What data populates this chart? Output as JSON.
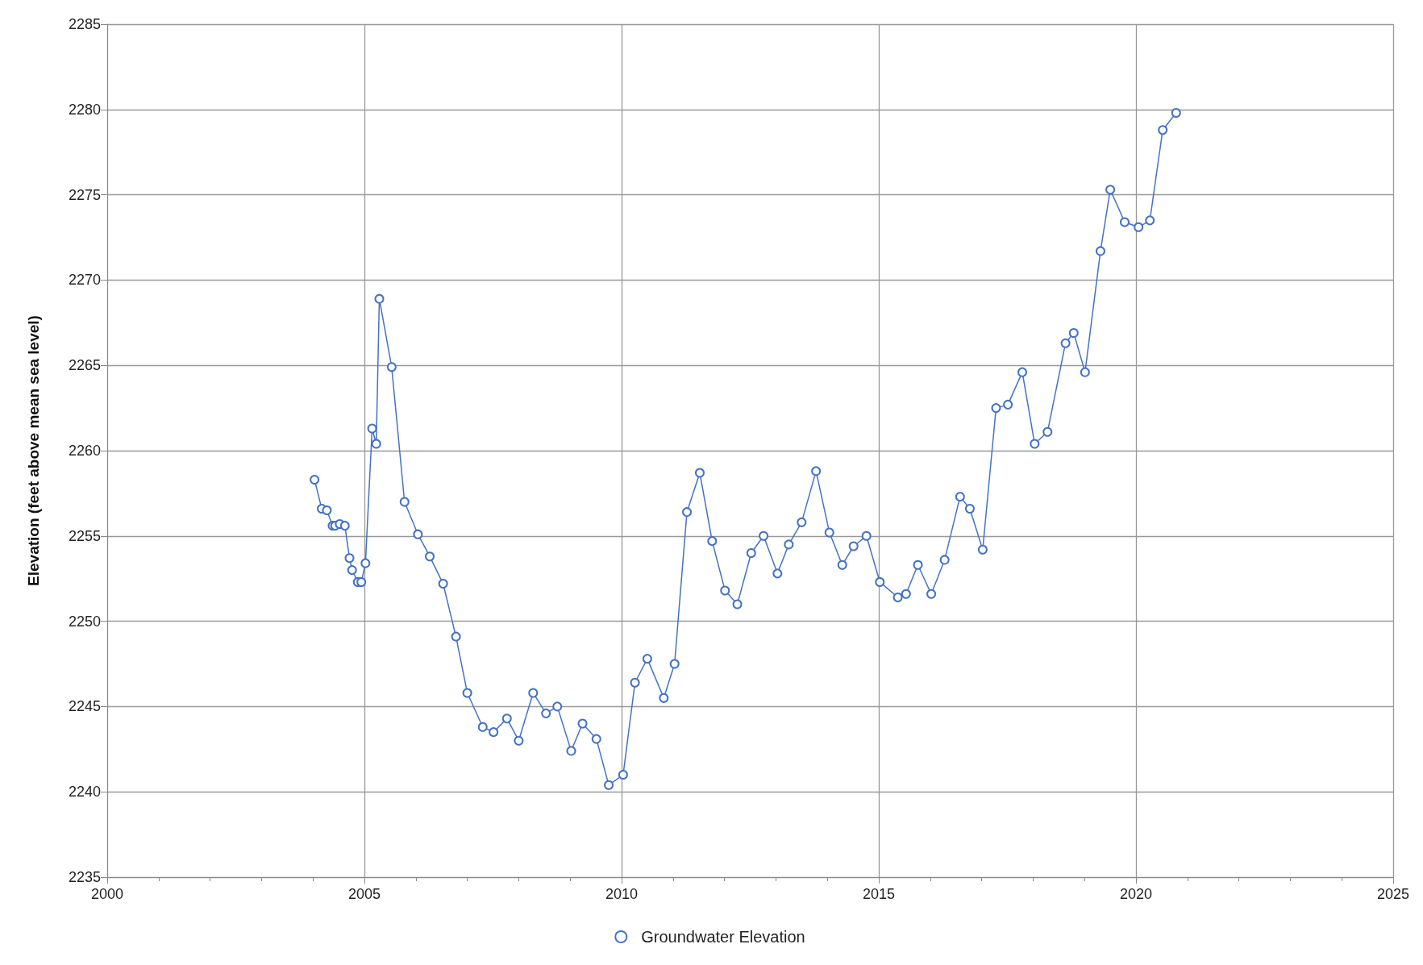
{
  "chart_data": {
    "type": "line",
    "ylabel": "Elevation (feet above mean sea level)",
    "xlim": [
      2000,
      2025
    ],
    "xticks": [
      2000,
      {
        "value": 2001,
        "label": null
      },
      {
        "value": 2002,
        "label": null
      },
      {
        "value": 2003,
        "label": null
      },
      {
        "value": 2004,
        "label": null
      },
      2005,
      {
        "value": 2006,
        "label": null
      },
      {
        "value": 2007,
        "label": null
      },
      {
        "value": 2008,
        "label": null
      },
      {
        "value": 2009,
        "label": null
      },
      2010,
      {
        "value": 2011,
        "label": null
      },
      {
        "value": 2012,
        "label": null
      },
      {
        "value": 2013,
        "label": null
      },
      {
        "value": 2014,
        "label": null
      },
      2015,
      {
        "value": 2016,
        "label": null
      },
      {
        "value": 2017,
        "label": null
      },
      {
        "value": 2018,
        "label": null
      },
      {
        "value": 2019,
        "label": null
      },
      2020,
      {
        "value": 2021,
        "label": null
      },
      {
        "value": 2022,
        "label": null
      },
      {
        "value": 2023,
        "label": null
      },
      {
        "value": 2024,
        "label": null
      },
      2025
    ],
    "ylim": [
      2235,
      2285
    ],
    "yticks": [
      2235,
      2240,
      2245,
      2250,
      2255,
      2260,
      2265,
      2270,
      2275,
      2280,
      2285
    ],
    "grid": true,
    "legend": "bottom",
    "marker": "circle",
    "line_style": "solid",
    "x": [
      2004.03,
      2004.17,
      2004.27,
      2004.38,
      2004.43,
      2004.52,
      2004.62,
      2004.71,
      2004.76,
      2004.87,
      2004.94,
      2005.02,
      2005.15,
      2005.23,
      2005.29,
      2005.53,
      2005.78,
      2006.04,
      2006.27,
      2006.53,
      2006.78,
      2007.0,
      2007.3,
      2007.51,
      2007.77,
      2008.0,
      2008.28,
      2008.53,
      2008.75,
      2009.02,
      2009.24,
      2009.51,
      2009.75,
      2010.03,
      2010.26,
      2010.5,
      2010.82,
      2011.03,
      2011.27,
      2011.52,
      2011.76,
      2012.01,
      2012.25,
      2012.52,
      2012.76,
      2013.03,
      2013.25,
      2013.5,
      2013.78,
      2014.04,
      2014.29,
      2014.51,
      2014.76,
      2015.02,
      2015.37,
      2015.53,
      2015.76,
      2016.02,
      2016.28,
      2016.58,
      2016.77,
      2017.02,
      2017.28,
      2017.51,
      2017.79,
      2018.03,
      2018.28,
      2018.63,
      2018.79,
      2019.01,
      2019.31,
      2019.5,
      2019.78,
      2020.05,
      2020.27,
      2020.52,
      2020.78
    ],
    "series": [
      {
        "name": "Groundwater Elevation",
        "color": "#4472c4",
        "values": [
          2258.3,
          2256.6,
          2256.5,
          2255.6,
          2255.6,
          2255.7,
          2255.6,
          2253.7,
          2253.0,
          2252.3,
          2252.3,
          2253.4,
          2261.3,
          2260.4,
          2268.9,
          2264.9,
          2257.0,
          2255.1,
          2253.8,
          2252.2,
          2249.1,
          2245.8,
          2243.8,
          2243.5,
          2244.3,
          2243.0,
          2245.8,
          2244.6,
          2245.0,
          2242.4,
          2244.0,
          2243.1,
          2240.4,
          2241.0,
          2246.4,
          2247.8,
          2245.5,
          2247.5,
          2256.4,
          2258.7,
          2254.7,
          2251.8,
          2251.0,
          2254.0,
          2255.0,
          2252.8,
          2254.5,
          2255.8,
          2258.8,
          2255.2,
          2253.3,
          2254.4,
          2255.0,
          2252.3,
          2251.4,
          2251.6,
          2253.3,
          2251.6,
          2253.6,
          2257.3,
          2256.6,
          2254.2,
          2262.5,
          2262.7,
          2264.6,
          2260.4,
          2261.1,
          2266.3,
          2266.9,
          2264.6,
          2271.7,
          2275.3,
          2273.4,
          2273.1,
          2273.5,
          2278.8,
          2279.8
        ]
      }
    ]
  }
}
